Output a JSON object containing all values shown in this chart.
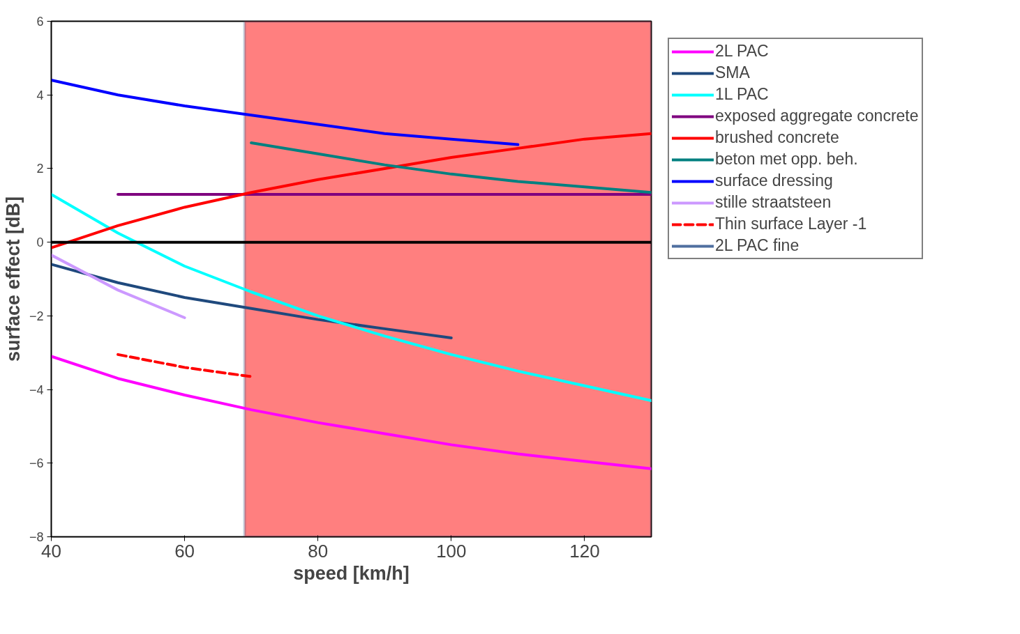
{
  "chart_data": {
    "type": "line",
    "xlabel": "speed [km/h]",
    "ylabel": "surface effect [dB]",
    "xlim": [
      40,
      130
    ],
    "ylim": [
      -8,
      6
    ],
    "xticks": [
      40,
      60,
      80,
      100,
      120
    ],
    "yticks": [
      -8,
      -6,
      -4,
      -2,
      0,
      2,
      4,
      6
    ],
    "grid": false,
    "legend": "right",
    "line_style": "solid",
    "marker": "none",
    "x": [
      40,
      50,
      60,
      70,
      80,
      90,
      100,
      110,
      120,
      130
    ],
    "series": [
      {
        "name": "2L PAC",
        "color": "#ff00ff",
        "values": [
          -3.1,
          -3.7,
          -4.15,
          -4.55,
          -4.9,
          -5.2,
          -5.5,
          -5.75,
          -5.95,
          -6.15
        ]
      },
      {
        "name": "SMA",
        "color": "#1f497d",
        "values": [
          -0.6,
          -1.1,
          -1.5,
          -1.8,
          -2.1,
          -2.35,
          -2.6,
          null,
          null,
          null
        ]
      },
      {
        "name": "1L PAC",
        "color": "#00ffff",
        "values": [
          1.3,
          0.25,
          -0.65,
          -1.35,
          -2.0,
          -2.55,
          -3.05,
          -3.5,
          -3.9,
          -4.3
        ]
      },
      {
        "name": "exposed aggregate concrete",
        "color": "#7f007f",
        "values": [
          null,
          1.3,
          1.3,
          1.3,
          1.3,
          1.3,
          1.3,
          1.3,
          1.3,
          1.3
        ]
      },
      {
        "name": "brushed concrete",
        "color": "#ff0000",
        "values": [
          -0.15,
          0.45,
          0.95,
          1.35,
          1.7,
          2.0,
          2.3,
          2.55,
          2.8,
          2.95
        ]
      },
      {
        "name": "beton met opp. beh.",
        "color": "#008080",
        "values": [
          null,
          null,
          null,
          2.7,
          2.4,
          2.1,
          1.85,
          1.65,
          1.5,
          1.35
        ]
      },
      {
        "name": "surface dressing",
        "color": "#0000ff",
        "values": [
          4.4,
          4.0,
          3.7,
          3.45,
          3.2,
          2.95,
          2.8,
          2.65,
          null,
          null
        ]
      },
      {
        "name": "stille straatsteen",
        "color": "#cc99ff",
        "values": [
          -0.35,
          -1.3,
          -2.05,
          null,
          null,
          null,
          null,
          null,
          null,
          null
        ]
      },
      {
        "name": "Thin surface Layer -1",
        "color": "#ff0000",
        "line_style": "dashed",
        "values": [
          null,
          -3.05,
          -3.4,
          -3.65,
          null,
          null,
          null,
          null,
          null,
          null
        ]
      },
      {
        "name": "2L PAC fine",
        "color": "#4f6f9f",
        "values": [
          null,
          null,
          null,
          null,
          null,
          null,
          null,
          null,
          null,
          null
        ]
      }
    ],
    "ref_lines": [
      {
        "axis": "y",
        "value": 0,
        "color": "#000000"
      }
    ],
    "bands": [
      {
        "axis": "x",
        "from": 69,
        "to": 130,
        "color": "#ff0000"
      }
    ]
  }
}
